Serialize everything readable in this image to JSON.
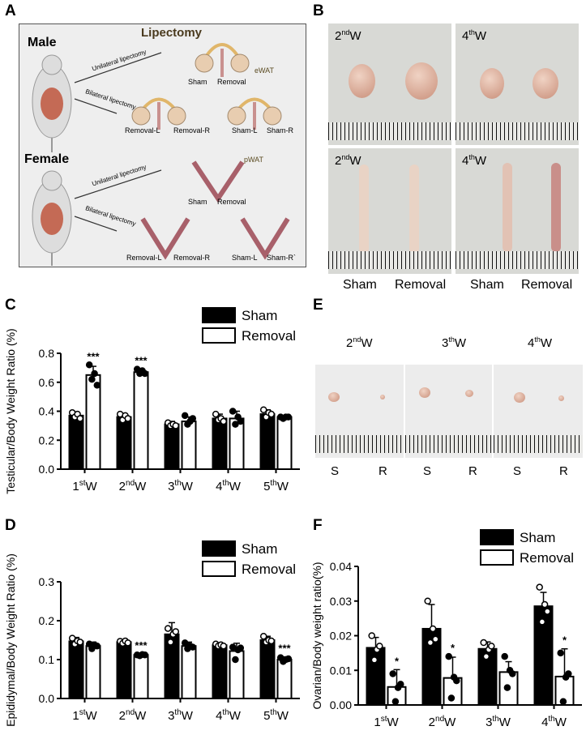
{
  "panel_letters": {
    "A": "A",
    "B": "B",
    "C": "C",
    "D": "D",
    "E": "E",
    "F": "F"
  },
  "panelA": {
    "title": "Lipectomy",
    "male": "Male",
    "female": "Female",
    "unilateral": "Unilateral lipectomy",
    "bilateral": "Bilateral lipectomy",
    "ewat": "eWAT",
    "pwat": "pWAT",
    "sham": "Sham",
    "removal": "Removal",
    "removal_l": "Removal-L",
    "removal_r": "Removal-R",
    "sham_l": "Sham-L",
    "sham_r": "Sham-R",
    "sham_r2": "Sham-R`"
  },
  "panelB": {
    "w2": "2ndW",
    "w4": "4thW",
    "sham": "Sham",
    "removal": "Removal"
  },
  "panelE": {
    "w2": "2ndW",
    "w3": "3thW",
    "w4": "4thW",
    "s": "S",
    "r": "R"
  },
  "colors": {
    "sham": "#000000",
    "removal": "#ffffff",
    "outline": "#000000"
  },
  "chart_data": [
    {
      "id": "C",
      "type": "bar",
      "categories": [
        "1stW",
        "2ndW",
        "3thW",
        "4thW",
        "5thW"
      ],
      "ylabel": "Testicular/Body Weight Ratio (%)",
      "ylim": [
        0,
        0.8
      ],
      "yticks": [
        "0.0",
        "0.2",
        "0.4",
        "0.6",
        "0.8"
      ],
      "legend": [
        "Sham",
        "Removal"
      ],
      "series": [
        {
          "name": "Sham",
          "values": [
            0.37,
            0.36,
            0.31,
            0.35,
            0.38
          ],
          "err": [
            0.02,
            0.02,
            0.02,
            0.03,
            0.03
          ]
        },
        {
          "name": "Removal",
          "values": [
            0.65,
            0.67,
            0.33,
            0.35,
            0.36
          ],
          "err": [
            0.06,
            0.02,
            0.03,
            0.05,
            0.01
          ]
        }
      ],
      "points": [
        [
          [
            0.39,
            0.36,
            0.38,
            0.35
          ],
          [
            0.72,
            0.62,
            0.66,
            0.58
          ]
        ],
        [
          [
            0.38,
            0.34,
            0.37,
            0.35
          ],
          [
            0.69,
            0.66,
            0.68,
            0.66
          ]
        ],
        [
          [
            0.32,
            0.3,
            0.31,
            0.3
          ],
          [
            0.37,
            0.31,
            0.33,
            0.35
          ]
        ],
        [
          [
            0.38,
            0.34,
            0.35,
            0.33
          ],
          [
            0.4,
            0.31,
            0.36,
            0.33
          ]
        ],
        [
          [
            0.41,
            0.36,
            0.39,
            0.38
          ],
          [
            0.36,
            0.35,
            0.36,
            0.36
          ]
        ]
      ],
      "annotations": [
        {
          "category": 0,
          "series": "Removal",
          "text": "***"
        },
        {
          "category": 1,
          "series": "Removal",
          "text": "***"
        }
      ]
    },
    {
      "id": "D",
      "type": "bar",
      "categories": [
        "1stW",
        "2ndW",
        "3thW",
        "4thW",
        "5thW"
      ],
      "ylabel": "Epididymal/Body Weight Ratio (%)",
      "ylim": [
        0,
        0.3
      ],
      "yticks": [
        "0.0",
        "0.1",
        "0.2",
        "0.3"
      ],
      "legend": [
        "Sham",
        "Removal"
      ],
      "series": [
        {
          "name": "Sham",
          "values": [
            0.147,
            0.145,
            0.165,
            0.137,
            0.15
          ],
          "err": [
            0.01,
            0.005,
            0.03,
            0.005,
            0.01
          ]
        },
        {
          "name": "Removal",
          "values": [
            0.135,
            0.112,
            0.135,
            0.122,
            0.1
          ],
          "err": [
            0.01,
            0.003,
            0.01,
            0.02,
            0.007
          ]
        }
      ],
      "points": [
        [
          [
            0.155,
            0.14,
            0.148,
            0.145
          ],
          [
            0.14,
            0.128,
            0.138,
            0.135
          ]
        ],
        [
          [
            0.147,
            0.142,
            0.148,
            0.143
          ],
          [
            0.112,
            0.11,
            0.113,
            0.112
          ]
        ],
        [
          [
            0.18,
            0.145,
            0.165,
            0.172
          ],
          [
            0.143,
            0.128,
            0.135,
            0.132
          ]
        ],
        [
          [
            0.14,
            0.135,
            0.138,
            0.135
          ],
          [
            0.132,
            0.1,
            0.125,
            0.13
          ]
        ],
        [
          [
            0.16,
            0.145,
            0.15,
            0.148
          ],
          [
            0.105,
            0.095,
            0.1,
            0.102
          ]
        ]
      ],
      "annotations": [
        {
          "category": 1,
          "series": "Removal",
          "text": "***"
        },
        {
          "category": 4,
          "series": "Removal",
          "text": "***"
        }
      ]
    },
    {
      "id": "F",
      "type": "bar",
      "categories": [
        "1stW",
        "2ndW",
        "3thW",
        "4thW"
      ],
      "ylabel": "Ovarian/Body weight ratio(%)",
      "ylim": [
        0,
        0.04
      ],
      "yticks": [
        "0.00",
        "0.01",
        "0.02",
        "0.03",
        "0.04"
      ],
      "legend": [
        "Sham",
        "Removal"
      ],
      "series": [
        {
          "name": "Sham",
          "values": [
            0.0165,
            0.022,
            0.0162,
            0.0285
          ],
          "err": [
            0.003,
            0.007,
            0.002,
            0.004
          ]
        },
        {
          "name": "Removal",
          "values": [
            0.0052,
            0.0078,
            0.0095,
            0.0082
          ],
          "err": [
            0.005,
            0.006,
            0.003,
            0.008
          ]
        }
      ],
      "points": [
        [
          [
            0.02,
            0.013,
            0.016,
            0.017
          ],
          [
            0.009,
            0.001,
            0.005,
            0.006
          ]
        ],
        [
          [
            0.03,
            0.018,
            0.022,
            0.019
          ],
          [
            0.014,
            0.002,
            0.008,
            0.007
          ]
        ],
        [
          [
            0.018,
            0.014,
            0.016,
            0.017
          ],
          [
            0.014,
            0.005,
            0.01,
            0.009
          ]
        ],
        [
          [
            0.034,
            0.024,
            0.029,
            0.027
          ],
          [
            0.015,
            0.001,
            0.008,
            0.009
          ]
        ]
      ],
      "annotations": [
        {
          "category": 0,
          "series": "Removal",
          "text": "*"
        },
        {
          "category": 1,
          "series": "Removal",
          "text": "*"
        },
        {
          "category": 3,
          "series": "Removal",
          "text": "*"
        }
      ]
    }
  ]
}
